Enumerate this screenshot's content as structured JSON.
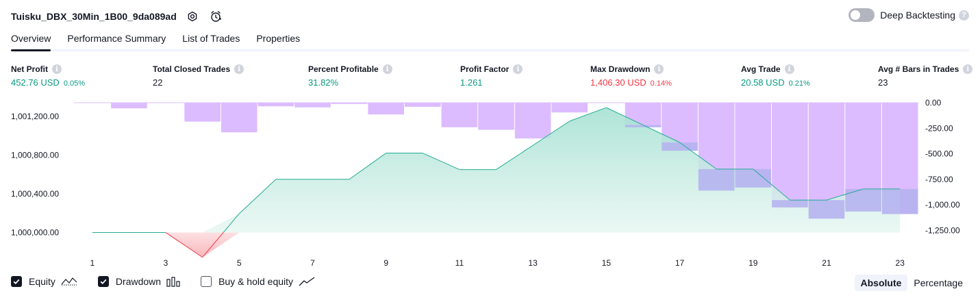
{
  "header": {
    "strategy_name": "Tuisku_DBX_30Min_1B00_9da089ad",
    "deep_backtesting_label": "Deep Backtesting",
    "help_mark": "?"
  },
  "tabs": [
    "Overview",
    "Performance Summary",
    "List of Trades",
    "Properties"
  ],
  "metrics": [
    {
      "label": "Net Profit",
      "value": "452.76 USD",
      "pct": "0.05%",
      "color": "#089981"
    },
    {
      "label": "Total Closed Trades",
      "value": "22",
      "pct": "",
      "color": "#131722"
    },
    {
      "label": "Percent Profitable",
      "value": "31.82%",
      "pct": "",
      "color": "#089981"
    },
    {
      "label": "Profit Factor",
      "value": "1.261",
      "pct": "",
      "color": "#089981"
    },
    {
      "label": "Max Drawdown",
      "value": "1,406.30 USD",
      "pct": "0.14%",
      "color": "#f23645"
    },
    {
      "label": "Avg Trade",
      "value": "20.58 USD",
      "pct": "0.21%",
      "color": "#089981"
    },
    {
      "label": "Avg # Bars in Trades",
      "value": "23",
      "pct": "",
      "color": "#131722"
    }
  ],
  "info_mark": "i",
  "chart_data": {
    "type": "area",
    "x": [
      1,
      2,
      3,
      4,
      5,
      6,
      7,
      8,
      9,
      10,
      11,
      12,
      13,
      14,
      15,
      16,
      17,
      18,
      19,
      20,
      21,
      22,
      23
    ],
    "x_tick_labels": [
      "1",
      "3",
      "5",
      "7",
      "9",
      "11",
      "13",
      "15",
      "17",
      "19",
      "21",
      "23"
    ],
    "series": [
      {
        "name": "Equity",
        "axis": "left",
        "values": [
          1000000,
          1000000,
          1000000,
          999745,
          1000195,
          1000550,
          1000550,
          1000550,
          1000820,
          1000820,
          1000650,
          1000650,
          1000900,
          1001150,
          1001290,
          1001110,
          1000930,
          1000655,
          1000655,
          1000335,
          1000335,
          1000450,
          1000450
        ]
      },
      {
        "name": "Drawdown",
        "axis": "right",
        "values": [
          0,
          -55,
          0,
          -185,
          -290,
          -35,
          -45,
          -12,
          -115,
          -40,
          -240,
          -265,
          -350,
          -95,
          0,
          -240,
          -470,
          -860,
          -830,
          -1025,
          -1135,
          -1065,
          -1090
        ]
      }
    ],
    "left_axis": {
      "ylim": [
        999820,
        1001340
      ],
      "ticks": [
        "1,000,000.00",
        "1,000,400.00",
        "1,000,800.00",
        "1,001,200.00"
      ],
      "tick_values": [
        1000000,
        1000400,
        1000800,
        1001200
      ]
    },
    "right_axis": {
      "ylim": [
        -1375,
        0
      ],
      "ticks": [
        "0.00",
        "-250.00",
        "-500.00",
        "-750.00",
        "-1,000.00",
        "-1,250.00"
      ],
      "tick_values": [
        0,
        -250,
        -500,
        -750,
        -1000,
        -1250
      ]
    },
    "colors": {
      "equity_line": "#22ab94",
      "equity_fill": "#b2e6d9",
      "equity_negative": "#f23645",
      "drawdown_bar": "#dcbcff",
      "overlap": "#b4b2f0"
    }
  },
  "footer": {
    "equity_label": "Equity",
    "equity_checked": true,
    "drawdown_label": "Drawdown",
    "drawdown_checked": true,
    "buy_hold_label": "Buy & hold equity",
    "buy_hold_checked": false,
    "modes": [
      "Absolute",
      "Percentage"
    ],
    "active_mode": "Absolute"
  }
}
